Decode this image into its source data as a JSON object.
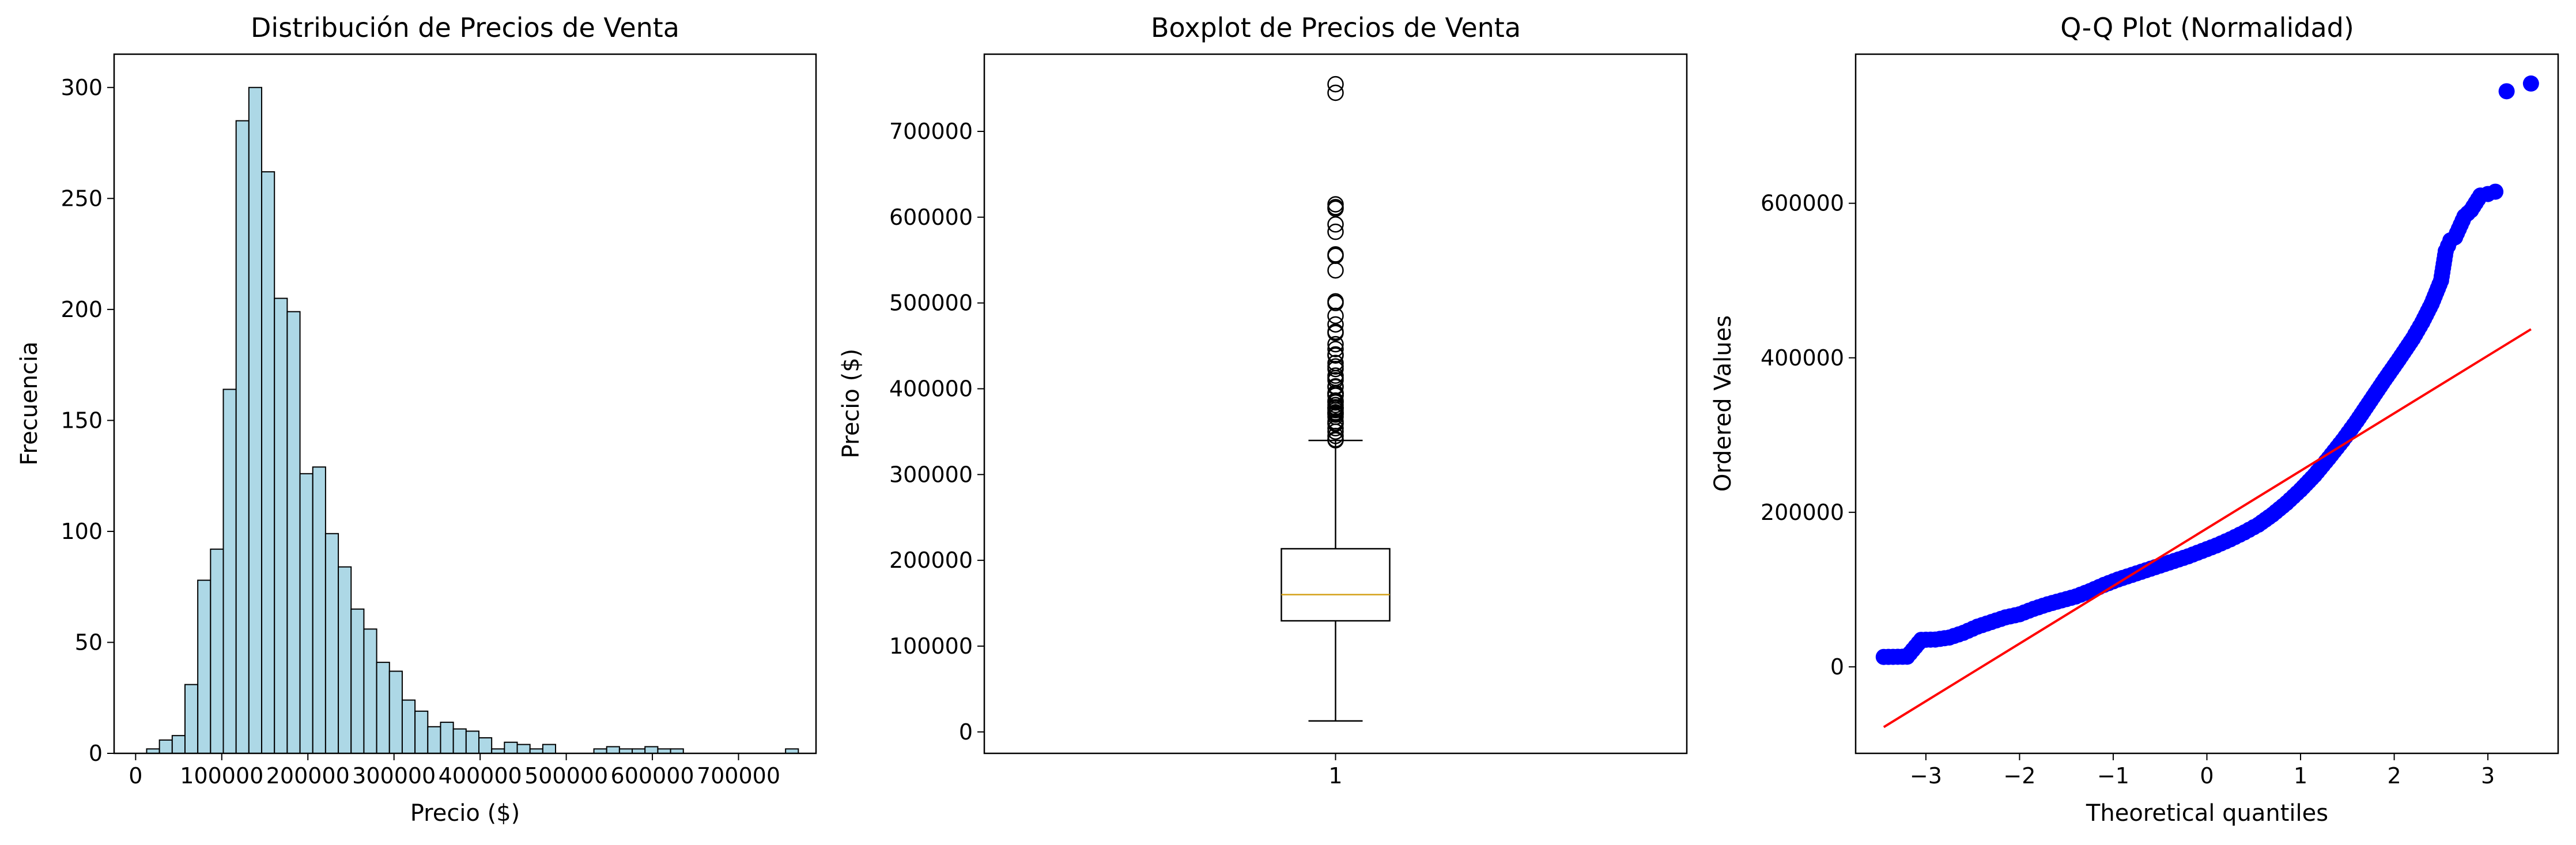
{
  "colors": {
    "hist_fill": "#add8e6",
    "hist_edge": "#000000",
    "median": "#d4a016",
    "qq_points": "#0000ff",
    "qq_line": "#ff0000"
  },
  "chart_data": [
    {
      "type": "bar",
      "title": "Distribución de Precios de Venta",
      "xlabel": "Precio ($)",
      "ylabel": "Frecuencia",
      "xlim": [
        -25000,
        790000
      ],
      "ylim": [
        0,
        315
      ],
      "xticks": [
        0,
        100000,
        200000,
        300000,
        400000,
        500000,
        600000,
        700000
      ],
      "xtick_labels": [
        "0",
        "100000",
        "200000",
        "300000",
        "400000",
        "500000",
        "600000",
        "700000"
      ],
      "yticks": [
        0,
        50,
        100,
        150,
        200,
        250,
        300
      ],
      "ytick_labels": [
        "0",
        "50",
        "100",
        "150",
        "200",
        "250",
        "300"
      ],
      "bin_start": 12789,
      "bin_width": 14837,
      "values": [
        2,
        6,
        8,
        31,
        78,
        92,
        164,
        285,
        300,
        262,
        205,
        199,
        126,
        129,
        99,
        84,
        65,
        56,
        41,
        37,
        24,
        19,
        12,
        14,
        11,
        10,
        7,
        2,
        5,
        4,
        2,
        4,
        0,
        0,
        0,
        2,
        3,
        2,
        2,
        3,
        2,
        2,
        0,
        0,
        0,
        0,
        0,
        0,
        0,
        0,
        2
      ],
      "grid": false
    },
    {
      "type": "box",
      "title": "Boxplot de Precios de Venta",
      "ylabel": "Precio ($)",
      "categories": [
        "1"
      ],
      "ylim": [
        -25000,
        790000
      ],
      "yticks": [
        0,
        100000,
        200000,
        300000,
        400000,
        500000,
        600000,
        700000
      ],
      "ytick_labels": [
        "0",
        "100000",
        "200000",
        "300000",
        "400000",
        "500000",
        "600000",
        "700000"
      ],
      "whisker_low": 12789,
      "q1": 129500,
      "median": 160000,
      "q3": 213500,
      "whisker_high": 339750,
      "outliers": [
        755000,
        745000,
        615000,
        611657,
        610000,
        591587,
        582933,
        556581,
        555000,
        538000,
        501837,
        500000,
        485000,
        475000,
        466500,
        465000,
        451950,
        446261,
        440000,
        438780,
        430000,
        426000,
        423000,
        415298,
        412500,
        410000,
        402861,
        402000,
        395192,
        394617,
        394432,
        392500,
        392000,
        386250,
        385000,
        383970,
        381000,
        378500,
        377500,
        377426,
        375000,
        372500,
        372402,
        370878,
        369900,
        367294,
        361919,
        360000,
        359100,
        354000,
        350000,
        345000,
        341000,
        340000
      ],
      "grid": false
    },
    {
      "type": "scatter",
      "title": "Q-Q Plot (Normalidad)",
      "xlabel": "Theoretical quantiles",
      "ylabel": "Ordered Values",
      "xlim": [
        -3.75,
        3.75
      ],
      "ylim": [
        -112000,
        793000
      ],
      "xticks": [
        -3,
        -2,
        -1,
        0,
        1,
        2,
        3
      ],
      "xtick_labels": [
        "−3",
        "−2",
        "−1",
        "0",
        "1",
        "2",
        "3"
      ],
      "yticks": [
        0,
        200000,
        400000,
        600000
      ],
      "ytick_labels": [
        "0",
        "200000",
        "400000",
        "600000"
      ],
      "points": [
        [
          -3.45,
          12789
        ],
        [
          -3.2,
          13100
        ],
        [
          -3.05,
          34900
        ],
        [
          -2.9,
          35300
        ],
        [
          -2.75,
          37900
        ],
        [
          -2.6,
          44000
        ],
        [
          -2.45,
          52000
        ],
        [
          -2.3,
          58000
        ],
        [
          -2.15,
          64000
        ],
        [
          -2.0,
          68000
        ],
        [
          -1.85,
          75000
        ],
        [
          -1.7,
          81000
        ],
        [
          -1.55,
          86000
        ],
        [
          -1.4,
          91000
        ],
        [
          -1.25,
          98000
        ],
        [
          -1.1,
          106000
        ],
        [
          -0.95,
          113000
        ],
        [
          -0.8,
          119000
        ],
        [
          -0.65,
          125000
        ],
        [
          -0.5,
          131000
        ],
        [
          -0.35,
          137000
        ],
        [
          -0.2,
          143000
        ],
        [
          -0.05,
          150000
        ],
        [
          0.1,
          157000
        ],
        [
          0.25,
          165000
        ],
        [
          0.4,
          174000
        ],
        [
          0.55,
          184000
        ],
        [
          0.7,
          197000
        ],
        [
          0.85,
          212000
        ],
        [
          1.0,
          229000
        ],
        [
          1.15,
          248000
        ],
        [
          1.3,
          270000
        ],
        [
          1.45,
          293000
        ],
        [
          1.6,
          318000
        ],
        [
          1.75,
          345000
        ],
        [
          1.9,
          372000
        ],
        [
          2.05,
          398000
        ],
        [
          2.2,
          425000
        ],
        [
          2.3,
          446000
        ],
        [
          2.4,
          470000
        ],
        [
          2.5,
          500000
        ],
        [
          2.55,
          538000
        ],
        [
          2.6,
          552000
        ],
        [
          2.65,
          556000
        ],
        [
          2.75,
          583000
        ],
        [
          2.82,
          591000
        ],
        [
          2.92,
          610000
        ],
        [
          3.0,
          612000
        ],
        [
          3.08,
          615000
        ],
        [
          3.2,
          745000
        ],
        [
          3.46,
          755000
        ]
      ],
      "fit_line": {
        "x": [
          -3.45,
          3.46
        ],
        "y": [
          -78000,
          437000
        ]
      },
      "grid": false
    }
  ]
}
